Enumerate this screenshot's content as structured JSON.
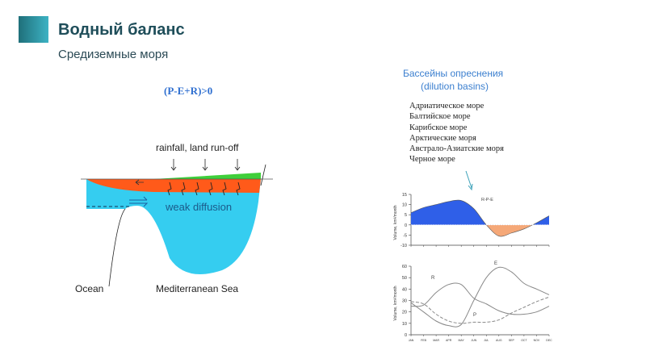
{
  "header": {
    "title": "Водный баланс",
    "subtitle": "Средиземные моря"
  },
  "formula": "(P-E+R)>0",
  "diagram": {
    "top_label": "rainfall, land run-off",
    "mid_label": "weak diffusion",
    "ocean_label": "Ocean",
    "sea_label": "Mediterranean Sea"
  },
  "basins": {
    "title": "Бассейны опреснения",
    "subtitle": "(dilution basins)",
    "items": [
      "Адриатическое море",
      "Балтийское море",
      "Карибское море",
      "Арктические моря",
      "Австрало-Азиатские моря",
      "Черное море"
    ]
  },
  "chart_data": [
    {
      "type": "area",
      "title": "R-P-E",
      "ylabel": "Volume, km³/month",
      "ylim": [
        -10,
        15
      ],
      "yticks": [
        15,
        10,
        5,
        0,
        -5,
        -10
      ],
      "x": [
        "JAN",
        "FEB",
        "MAR",
        "APR",
        "MAY",
        "JUN",
        "JUL",
        "AUG",
        "SEP",
        "OCT",
        "NOV",
        "DEC"
      ],
      "values": [
        6,
        8.5,
        10,
        11.5,
        12,
        8,
        0,
        -5.5,
        -4,
        -2,
        1,
        4.5
      ],
      "colors": {
        "positive": "#2f5fe8",
        "negative": "#f5a878"
      }
    },
    {
      "type": "line",
      "ylabel": "Volume, km³/month",
      "ylim": [
        0,
        60
      ],
      "yticks": [
        60,
        50,
        40,
        30,
        20,
        10,
        0
      ],
      "x": [
        "JAN",
        "FEB",
        "MAR",
        "APR",
        "MAY",
        "JUN",
        "JUL",
        "AUG",
        "SEP",
        "OCT",
        "NOV",
        "DEC"
      ],
      "series": [
        {
          "name": "E",
          "values": [
            28,
            20,
            12,
            8,
            9,
            30,
            50,
            59,
            55,
            45,
            40,
            35
          ],
          "style": "solid"
        },
        {
          "name": "R",
          "values": [
            25,
            26,
            37,
            44,
            44,
            32,
            27,
            21,
            18,
            18,
            20,
            25
          ],
          "style": "solid"
        },
        {
          "name": "P",
          "values": [
            29,
            27,
            18,
            12,
            10,
            11,
            11,
            13,
            19,
            24,
            29,
            33
          ],
          "style": "dashed"
        }
      ]
    }
  ]
}
